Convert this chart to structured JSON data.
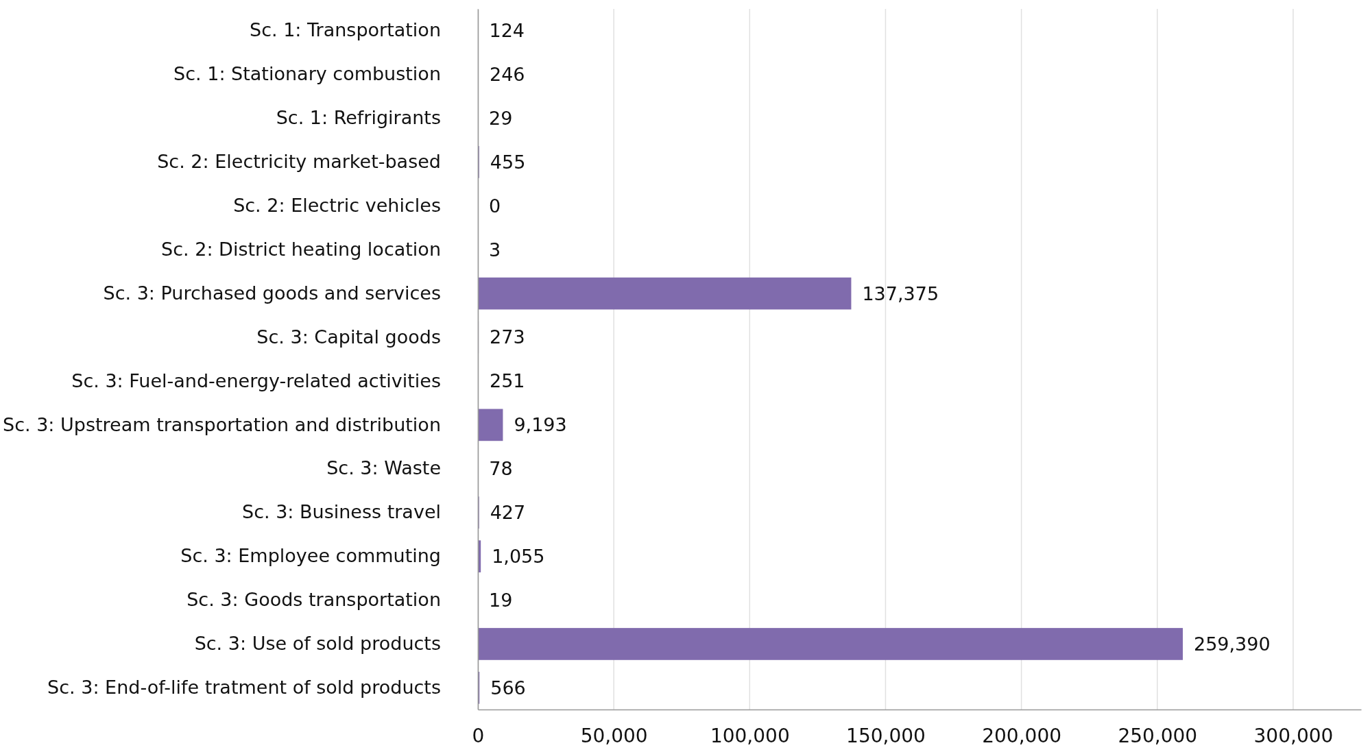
{
  "chart_data": {
    "type": "bar",
    "orientation": "horizontal",
    "categories": [
      "Sc. 1: Transportation",
      "Sc. 1: Stationary combustion",
      "Sc. 1: Refrigirants",
      "Sc. 2: Electricity market-based",
      "Sc. 2: Electric vehicles",
      "Sc. 2: District heating location",
      "Sc. 3: Purchased goods and services",
      "Sc. 3: Capital goods",
      "Sc. 3: Fuel-and-energy-related activities",
      "Sc. 3: Upstream transportation and distribution",
      "Sc. 3: Waste",
      "Sc. 3: Business travel",
      "Sc. 3: Employee commuting",
      "Sc. 3: Goods transportation",
      "Sc. 3: Use of sold products",
      "Sc. 3: End-of-life tratment of sold products"
    ],
    "values": [
      124,
      246,
      29,
      455,
      0,
      3,
      137375,
      273,
      251,
      9193,
      78,
      427,
      1055,
      19,
      259390,
      566
    ],
    "color": "#806bad",
    "xlim": [
      0,
      325000
    ],
    "xticks": [
      {
        "value": 0,
        "label": "0"
      },
      {
        "value": 50000,
        "label": "50,000"
      },
      {
        "value": 100000,
        "label": "100,000"
      },
      {
        "value": 150000,
        "label": "150,000"
      },
      {
        "value": 200000,
        "label": "200,000"
      },
      {
        "value": 250000,
        "label": "250,000"
      },
      {
        "value": 300000,
        "label": "300,000"
      }
    ],
    "value_labels": [
      "124",
      "246",
      "29",
      "455",
      "0",
      "3",
      "137,375",
      "273",
      "251",
      "9,193",
      "78",
      "427",
      "1,055",
      "19",
      "259,390",
      "566"
    ],
    "grid": "x"
  }
}
